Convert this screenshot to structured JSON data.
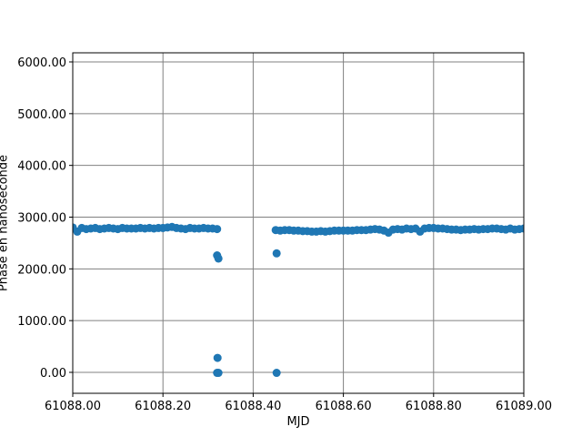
{
  "chart_data": {
    "type": "scatter",
    "xlabel": "MJD",
    "ylabel": "Phase en nanoseconde",
    "color": "#1f77b4",
    "grid": true,
    "xlim": [
      61088.0,
      61089.0
    ],
    "xticks": [
      {
        "value": 61088.0,
        "label": "61088.00"
      },
      {
        "value": 61088.2,
        "label": "61088.20"
      },
      {
        "value": 61088.4,
        "label": "61088.40"
      },
      {
        "value": 61088.6,
        "label": "61088.60"
      },
      {
        "value": 61088.8,
        "label": "61088.80"
      },
      {
        "value": 61089.0,
        "label": "61089.00"
      }
    ],
    "ylim": [
      -405,
      6176
    ],
    "yticks": [
      {
        "value": 0,
        "label": "0.00"
      },
      {
        "value": 1000,
        "label": "1000.00"
      },
      {
        "value": 2000,
        "label": "2000.00"
      },
      {
        "value": 3000,
        "label": "3000.00"
      },
      {
        "value": 4000,
        "label": "4000.00"
      },
      {
        "value": 5000,
        "label": "5000.00"
      },
      {
        "value": 6000,
        "label": "6000.00"
      }
    ],
    "x": [
      61088.0,
      61088.01,
      61088.02,
      61088.03,
      61088.04,
      61088.05,
      61088.06,
      61088.07,
      61088.08,
      61088.09,
      61088.1,
      61088.11,
      61088.12,
      61088.13,
      61088.14,
      61088.15,
      61088.16,
      61088.17,
      61088.18,
      61088.19,
      61088.2,
      61088.21,
      61088.22,
      61088.23,
      61088.24,
      61088.25,
      61088.26,
      61088.27,
      61088.28,
      61088.29,
      61088.3,
      61088.31,
      61088.32,
      61088.32,
      61088.323,
      61088.321,
      61088.32,
      61088.323,
      61088.452,
      61088.452,
      61088.45,
      61088.46,
      61088.47,
      61088.48,
      61088.49,
      61088.5,
      61088.51,
      61088.52,
      61088.53,
      61088.54,
      61088.55,
      61088.56,
      61088.57,
      61088.58,
      61088.59,
      61088.6,
      61088.61,
      61088.62,
      61088.63,
      61088.64,
      61088.65,
      61088.66,
      61088.67,
      61088.68,
      61088.69,
      61088.7,
      61088.71,
      61088.72,
      61088.73,
      61088.74,
      61088.75,
      61088.76,
      61088.77,
      61088.78,
      61088.79,
      61088.8,
      61088.81,
      61088.82,
      61088.83,
      61088.84,
      61088.85,
      61088.86,
      61088.87,
      61088.88,
      61088.89,
      61088.9,
      61088.91,
      61088.92,
      61088.93,
      61088.94,
      61088.95,
      61088.96,
      61088.97,
      61088.98,
      61088.99,
      61089.0
    ],
    "values": [
      2800,
      2720,
      2790,
      2770,
      2780,
      2790,
      2770,
      2780,
      2790,
      2780,
      2770,
      2790,
      2780,
      2780,
      2780,
      2790,
      2780,
      2790,
      2780,
      2790,
      2790,
      2800,
      2810,
      2790,
      2780,
      2770,
      2790,
      2780,
      2780,
      2790,
      2780,
      2780,
      2770,
      2260,
      2200,
      280,
      -10,
      -10,
      2300,
      -10,
      2750,
      2740,
      2750,
      2750,
      2740,
      2740,
      2730,
      2730,
      2720,
      2720,
      2730,
      2720,
      2730,
      2740,
      2740,
      2740,
      2740,
      2740,
      2750,
      2750,
      2750,
      2760,
      2770,
      2760,
      2740,
      2700,
      2760,
      2770,
      2760,
      2780,
      2770,
      2780,
      2720,
      2780,
      2790,
      2790,
      2780,
      2780,
      2770,
      2760,
      2760,
      2750,
      2760,
      2760,
      2770,
      2760,
      2770,
      2770,
      2780,
      2780,
      2770,
      2760,
      2780,
      2760,
      2770,
      2780
    ]
  }
}
